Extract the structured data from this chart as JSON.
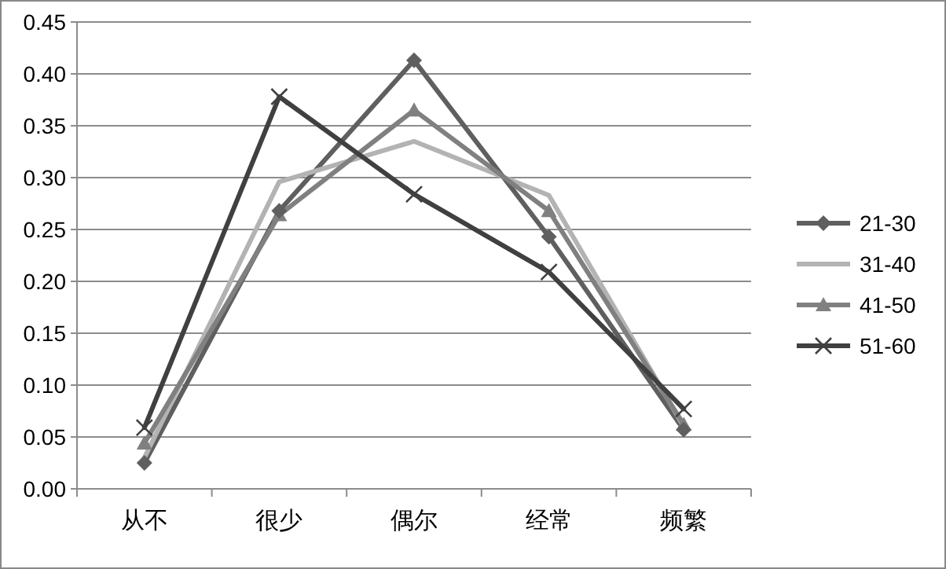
{
  "chart_data": {
    "type": "line",
    "categories": [
      "从不",
      "很少",
      "偶尔",
      "经常",
      "频繁"
    ],
    "series": [
      {
        "name": "21-30",
        "color": "#5f5f5f",
        "marker": "diamond",
        "values": [
          0.025,
          0.268,
          0.413,
          0.243,
          0.057
        ]
      },
      {
        "name": "31-40",
        "color": "#b3b3b3",
        "marker": "none",
        "values": [
          0.03,
          0.296,
          0.335,
          0.283,
          0.06
        ]
      },
      {
        "name": "41-50",
        "color": "#808080",
        "marker": "triangle",
        "values": [
          0.044,
          0.264,
          0.365,
          0.268,
          0.062
        ]
      },
      {
        "name": "51-60",
        "color": "#404040",
        "marker": "cross",
        "values": [
          0.059,
          0.378,
          0.284,
          0.209,
          0.077
        ]
      }
    ],
    "ylim": [
      0,
      0.45
    ],
    "yticks": [
      {
        "value": 0,
        "label": "0.00"
      },
      {
        "value": 0.05,
        "label": "0.05"
      },
      {
        "value": 0.1,
        "label": "0.10"
      },
      {
        "value": 0.15,
        "label": "0.15"
      },
      {
        "value": 0.2,
        "label": "0.20"
      },
      {
        "value": 0.25,
        "label": "0.25"
      },
      {
        "value": 0.3,
        "label": "0.30"
      },
      {
        "value": 0.35,
        "label": "0.35"
      },
      {
        "value": 0.4,
        "label": "0.40"
      },
      {
        "value": 0.45,
        "label": "0.45"
      }
    ],
    "grid": "y",
    "legend": "right"
  }
}
